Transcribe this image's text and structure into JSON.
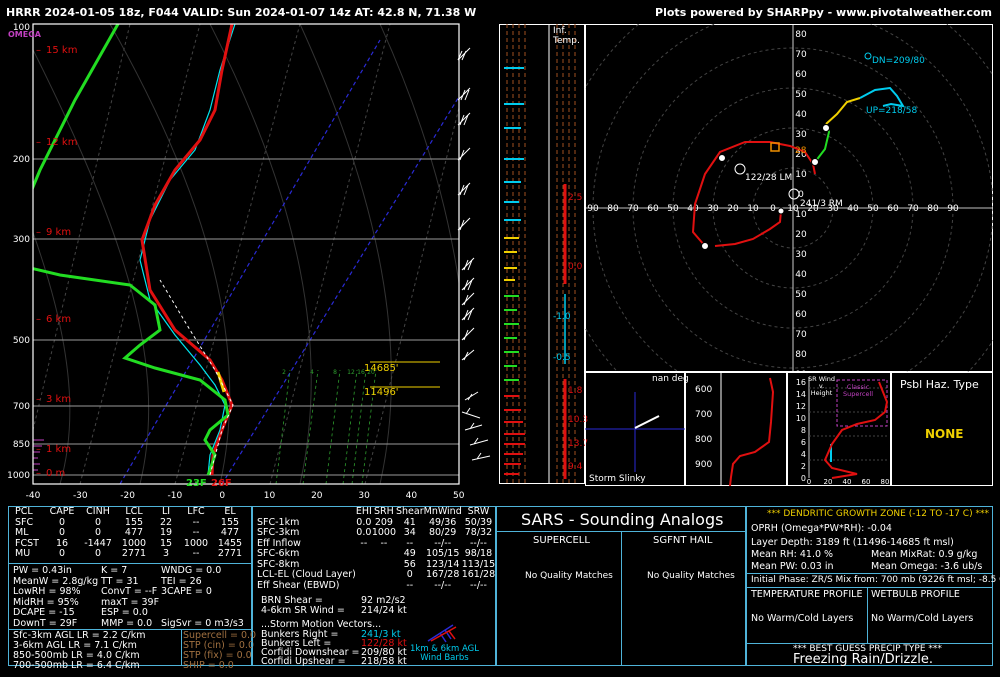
{
  "header": {
    "title": "HRRR 2024-01-05 18z, F044  VALID: Sun 2024-01-07 14z  AT: 42.8 N, 71.38 W",
    "credit": "Plots powered by SHARPpy - www.pivotalweather.com"
  },
  "chart_data": [
    {
      "type": "line",
      "name": "skew-t",
      "omega_label": "OMEGA",
      "y_ticks": [
        "100",
        "200",
        "300",
        "500",
        "700",
        "850",
        "1000"
      ],
      "x_ticks": [
        "-40",
        "-30",
        "-20",
        "-10",
        "0",
        "10",
        "20",
        "30",
        "40",
        "50"
      ],
      "height_labels": [
        "15 km",
        "12 km",
        "9 km",
        "6 km",
        "3 km",
        "1 km",
        "0 m"
      ],
      "surface_temps": {
        "dewpoint": "23F",
        "temperature": "26F"
      },
      "dgz_labels": [
        "14685'",
        "11496'"
      ],
      "mixing_ratio_labels": [
        "2",
        "4",
        "8",
        "12",
        "16",
        "20"
      ]
    },
    {
      "type": "line",
      "name": "inferred-temperature",
      "title": "Inf.\nTemp.",
      "labels": [
        "2.5",
        "0.0",
        "-1.0",
        "-0.5",
        "1.8",
        "10.3",
        "13.7",
        "9.4"
      ]
    },
    {
      "type": "scatter",
      "name": "hodograph",
      "ticks": [
        "80",
        "70",
        "60",
        "50",
        "40",
        "30",
        "20",
        "10",
        "0",
        "10",
        "20",
        "30",
        "40",
        "50",
        "60",
        "70",
        "80",
        "90"
      ],
      "x_ticks": [
        "90",
        "80",
        "70",
        "60",
        "50",
        "40",
        "30",
        "20",
        "10",
        "0",
        "10",
        "20",
        "30",
        "40",
        "50",
        "60",
        "70",
        "80",
        "90"
      ],
      "labels": {
        "dn": "DN=209/80",
        "up": "UP=218/58",
        "lm": "122/28 LM",
        "rm": "241/3 RM",
        "mean": "28"
      }
    },
    {
      "type": "line",
      "name": "inferred-temp-advection",
      "title": "nan deg",
      "y_ticks": [
        "600",
        "700",
        "800",
        "900"
      ],
      "footer": "Storm Slinky"
    },
    {
      "type": "line",
      "name": "sr-wind",
      "title": "SR Wind\nv.\nHeight",
      "subtitle": "Classic\nSupercell",
      "y_ticks": [
        "16",
        "14",
        "12",
        "10",
        "8",
        "6",
        "4",
        "2",
        "0"
      ],
      "x_ticks": [
        "0",
        "20",
        "40",
        "60",
        "80"
      ]
    }
  ],
  "hazard": {
    "title": "Psbl Haz. Type",
    "value": "NONE"
  },
  "thermo_table": {
    "headers": [
      "PCL",
      "CAPE",
      "CINH",
      "LCL",
      "LI",
      "LFC",
      "EL"
    ],
    "rows": [
      [
        "SFC",
        "0",
        "0",
        "155",
        "22",
        "--",
        "155"
      ],
      [
        "ML",
        "0",
        "0",
        "477",
        "19",
        "--",
        "477"
      ],
      [
        "FCST",
        "16",
        "-1447",
        "1000",
        "15",
        "1000",
        "1455"
      ],
      [
        "MU",
        "0",
        "0",
        "2771",
        "3",
        "--",
        "2771"
      ]
    ]
  },
  "thermo_lines": [
    [
      "PW = 0.43in",
      "K = 7",
      "WNDG = 0.0"
    ],
    [
      "MeanW = 2.8g/kg",
      "TT = 31",
      "TEI = 26"
    ],
    [
      "LowRH = 98%",
      "ConvT = --F",
      "3CAPE = 0"
    ],
    [
      "MidRH = 95%",
      "maxT = 39F",
      ""
    ],
    [
      "DCAPE = -15",
      "ESP = 0.0",
      ""
    ],
    [
      "DownT = 29F",
      "MMP = 0.0",
      "SigSvr = 0 m3/s3"
    ]
  ],
  "lapse_rates": [
    "Sfc-3km AGL LR = 2.2 C/km",
    "3-6km AGL LR = 7.1 C/km",
    "850-500mb LR = 4.0 C/km",
    "700-500mb LR = 6.4 C/km"
  ],
  "indices": [
    "Supercell = 0.0",
    "STP (cin) = 0.0",
    "STP (fix) = 0.0",
    "SHIP = 0.0"
  ],
  "kinematic_table": {
    "headers": [
      "",
      "EHI",
      "SRH",
      "Shear",
      "MnWind",
      "SRW"
    ],
    "rows": [
      [
        "SFC-1km",
        "0.0",
        "209",
        "41",
        "49/36",
        "50/39"
      ],
      [
        "SFC-3km",
        "0.0",
        "1000",
        "34",
        "80/29",
        "78/32"
      ],
      [
        "Eff Inflow",
        "--",
        "--",
        "--",
        "--/--",
        "--/--"
      ],
      [
        "SFC-6km",
        "",
        "",
        "49",
        "105/15",
        "98/18"
      ],
      [
        "SFC-8km",
        "",
        "",
        "56",
        "123/14",
        "113/15"
      ],
      [
        "LCL-EL (Cloud Layer)",
        "",
        "",
        "0",
        "167/28",
        "161/28"
      ],
      [
        "Eff Shear (EBWD)",
        "",
        "",
        "--",
        "--/--",
        "--/--"
      ]
    ],
    "brn_shear_label": "BRN Shear =",
    "brn_shear": "92 m2/s2",
    "sr_wind_label": "4-6km SR Wind =",
    "sr_wind": "214/24 kt",
    "vectors_title": "...Storm Motion Vectors...",
    "vectors": [
      [
        "Bunkers Right =",
        "241/3 kt"
      ],
      [
        "Bunkers Left =",
        "122/28 kt"
      ],
      [
        "Corfidi Downshear =",
        "209/80 kt"
      ],
      [
        "Corfidi Upshear =",
        "218/58 kt"
      ]
    ],
    "barb_legend": "1km & 6km AGL\nWind Barbs"
  },
  "sars": {
    "title": "SARS - Sounding Analogs",
    "supercell": "SUPERCELL",
    "hail": "SGFNT HAIL",
    "supercell_result": "No Quality Matches",
    "hail_result": "No Quality Matches"
  },
  "dgz": {
    "title": "*** DENDRITIC GROWTH ZONE (-12 TO -17 C) ***",
    "oprh": "OPRH (Omega*PW*RH): -0.04",
    "layer_depth": "Layer Depth: 3189 ft (11496-14685 ft msl)",
    "mean_rh": "Mean RH: 41.0 %",
    "mean_mixrat": "Mean MixRat: 0.9 g/kg",
    "mean_pw": "Mean PW: 0.03 in",
    "mean_omega": "Mean Omega: -3.6 ub/s",
    "initial_phase": "Initial Phase: ZR/S Mix from: 700 mb (9226 ft msl; -8.5 C)",
    "temp_profile": "TEMPERATURE PROFILE",
    "wetbulb_profile": "WETBULB PROFILE",
    "temp_result": "No Warm/Cold Layers",
    "wetbulb_result": "No Warm/Cold Layers",
    "precip_title": "*** BEST GUESS PRECIP TYPE ***",
    "precip_type": "Freezing Rain/Drizzle."
  }
}
